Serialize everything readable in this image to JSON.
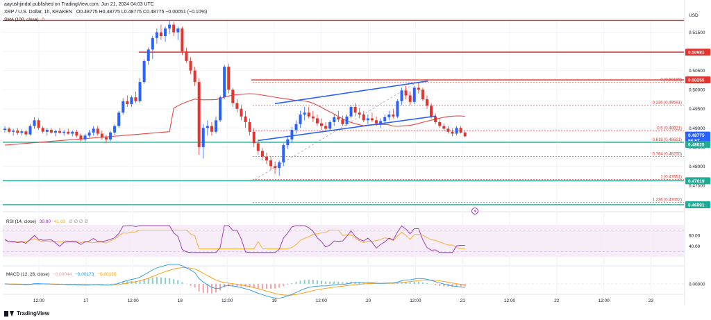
{
  "header": {
    "author": "aayushjindal published on TradingView.com, Jun 21, 2024 04:03 UTC",
    "symbol_line": "XRP / U.S. Dollar, 1h, KRAKEN",
    "ohlc": "O0.48775 H0.48775 L0.48775 C0.48775 −0.00051 (−0.10%)",
    "sma_label": "SMA (100, close)",
    "sma_value": "0"
  },
  "footer": {
    "brand": "TradingView"
  },
  "price_axis": {
    "currency": "USD",
    "ticks": [
      "0.51500",
      "0.51000",
      "0.50500",
      "0.50000",
      "0.49500",
      "0.49000",
      "0.48500",
      "0.48000",
      "0.47500",
      "0.47000"
    ]
  },
  "price_badges": [
    {
      "label": "0.50981",
      "color": "#e3342f"
    },
    {
      "label": "0.50255",
      "color": "#e3342f"
    },
    {
      "label": "0.48775",
      "color": "#2962ff"
    },
    {
      "label": "56:57",
      "color": "#2962ff"
    },
    {
      "label": "0.48625",
      "color": "#22ab94"
    },
    {
      "label": "0.47619",
      "color": "#22ab94"
    },
    {
      "label": "0.46991",
      "color": "#22ab94"
    }
  ],
  "fib_labels": [
    {
      "ratio": "0",
      "price": "0.50190",
      "text": "0 (0.50190)"
    },
    {
      "ratio": "0.236",
      "price": "0.49591",
      "text": "0.236 (0.49591)"
    },
    {
      "ratio": "0.5",
      "price": "0.48921",
      "text": "0.5 (0.48921)"
    },
    {
      "ratio": "0.618",
      "price": "0.48621",
      "text": "0.618 (0.48621)"
    },
    {
      "ratio": "0.764",
      "price": "0.48250",
      "text": "0.764 (0.48250)"
    },
    {
      "ratio": "1",
      "price": "0.47651",
      "text": "1 (0.47651)"
    },
    {
      "ratio": "1.236",
      "price": "0.47052",
      "text": "1.236 (0.47052)"
    }
  ],
  "rsi": {
    "label": "RSI (14, close)",
    "value": "39.80",
    "value2": "41.63",
    "ticks": [
      "60.00",
      "40.00"
    ]
  },
  "macd": {
    "label": "MACD (12, 26, close)",
    "values": [
      "−0.00044",
      "−0.00173",
      "−0.00130"
    ],
    "ticks": [
      "0.00000"
    ]
  },
  "time_axis": [
    "12:00",
    "17",
    "12:00",
    "18",
    "12:00",
    "19",
    "12:00",
    "20",
    "12:00",
    "21",
    "12:00",
    "22",
    "12:00",
    "23"
  ],
  "colors": {
    "up": "#2962ff",
    "down": "#e3342f",
    "sma": "#e3342f",
    "trend": "#2962ff",
    "support": "#22ab94",
    "resistance": "#e3342f",
    "rsi": "#9c27b0",
    "macd": "#2196f3",
    "signal": "#ff9800"
  },
  "chart_data": {
    "type": "candlestick",
    "symbol": "XRP / U.S. Dollar",
    "interval": "1h",
    "ylim": [
      0.469,
      0.518
    ],
    "horizontal_lines": [
      {
        "price": 0.5181,
        "color": "red"
      },
      {
        "price": 0.50981,
        "color": "red"
      },
      {
        "price": 0.50255,
        "color": "red"
      },
      {
        "price": 0.48625,
        "color": "green"
      },
      {
        "price": 0.47619,
        "color": "green"
      },
      {
        "price": 0.46991,
        "color": "green"
      }
    ],
    "fibonacci": [
      {
        "level": 0,
        "price": 0.5019
      },
      {
        "level": 0.236,
        "price": 0.49591
      },
      {
        "level": 0.5,
        "price": 0.48921
      },
      {
        "level": 0.618,
        "price": 0.48621
      },
      {
        "level": 0.764,
        "price": 0.4825
      },
      {
        "level": 1,
        "price": 0.47651
      },
      {
        "level": 1.236,
        "price": 0.47052
      }
    ],
    "candles": [
      [
        0.4895,
        0.4905,
        0.4888,
        0.4898
      ],
      [
        0.4898,
        0.4902,
        0.4885,
        0.489
      ],
      [
        0.489,
        0.4898,
        0.488,
        0.4893
      ],
      [
        0.4893,
        0.49,
        0.4882,
        0.4887
      ],
      [
        0.4887,
        0.4897,
        0.488,
        0.4891
      ],
      [
        0.4891,
        0.4895,
        0.4878,
        0.4883
      ],
      [
        0.4883,
        0.491,
        0.488,
        0.4905
      ],
      [
        0.4905,
        0.4928,
        0.4898,
        0.492
      ],
      [
        0.492,
        0.4925,
        0.4895,
        0.49
      ],
      [
        0.49,
        0.4905,
        0.4885,
        0.489
      ],
      [
        0.489,
        0.49,
        0.488,
        0.4895
      ],
      [
        0.4895,
        0.49,
        0.4885,
        0.4888
      ],
      [
        0.4888,
        0.4895,
        0.4878,
        0.4892
      ],
      [
        0.4892,
        0.49,
        0.4885,
        0.4887
      ],
      [
        0.4887,
        0.4895,
        0.488,
        0.489
      ],
      [
        0.489,
        0.4898,
        0.4882,
        0.4885
      ],
      [
        0.4885,
        0.4893,
        0.4878,
        0.489
      ],
      [
        0.489,
        0.4895,
        0.4875,
        0.488
      ],
      [
        0.488,
        0.4885,
        0.4865,
        0.487
      ],
      [
        0.487,
        0.4885,
        0.4865,
        0.488
      ],
      [
        0.488,
        0.4895,
        0.4875,
        0.4888
      ],
      [
        0.4888,
        0.4905,
        0.488,
        0.4898
      ],
      [
        0.4898,
        0.4905,
        0.488,
        0.4885
      ],
      [
        0.4885,
        0.4893,
        0.487,
        0.4875
      ],
      [
        0.4875,
        0.4882,
        0.486,
        0.487
      ],
      [
        0.487,
        0.4892,
        0.4865,
        0.4888
      ],
      [
        0.4888,
        0.491,
        0.4882,
        0.4905
      ],
      [
        0.4905,
        0.4945,
        0.49,
        0.494
      ],
      [
        0.494,
        0.4978,
        0.4935,
        0.497
      ],
      [
        0.497,
        0.4985,
        0.4955,
        0.4962
      ],
      [
        0.4962,
        0.4985,
        0.4955,
        0.498
      ],
      [
        0.498,
        0.4995,
        0.4965,
        0.497
      ],
      [
        0.497,
        0.503,
        0.4965,
        0.502
      ],
      [
        0.502,
        0.508,
        0.5015,
        0.5075
      ],
      [
        0.5075,
        0.511,
        0.5065,
        0.5105
      ],
      [
        0.5105,
        0.514,
        0.508,
        0.5135
      ],
      [
        0.5135,
        0.516,
        0.512,
        0.515
      ],
      [
        0.515,
        0.517,
        0.513,
        0.514
      ],
      [
        0.514,
        0.5165,
        0.5125,
        0.516
      ],
      [
        0.516,
        0.518,
        0.5145,
        0.517
      ],
      [
        0.517,
        0.5178,
        0.514,
        0.515
      ],
      [
        0.515,
        0.5165,
        0.513,
        0.516
      ],
      [
        0.516,
        0.5165,
        0.509,
        0.51
      ],
      [
        0.51,
        0.511,
        0.507,
        0.5075
      ],
      [
        0.5075,
        0.5085,
        0.504,
        0.505
      ],
      [
        0.505,
        0.506,
        0.501,
        0.502
      ],
      [
        0.502,
        0.503,
        0.483,
        0.485
      ],
      [
        0.485,
        0.491,
        0.482,
        0.49
      ],
      [
        0.49,
        0.492,
        0.488,
        0.4905
      ],
      [
        0.4905,
        0.4915,
        0.488,
        0.489
      ],
      [
        0.489,
        0.493,
        0.4885,
        0.492
      ],
      [
        0.492,
        0.4985,
        0.4915,
        0.498
      ],
      [
        0.498,
        0.5065,
        0.4975,
        0.506
      ],
      [
        0.506,
        0.5068,
        0.499,
        0.5
      ],
      [
        0.5,
        0.5005,
        0.4955,
        0.4965
      ],
      [
        0.4965,
        0.4975,
        0.494,
        0.495
      ],
      [
        0.495,
        0.496,
        0.492,
        0.493
      ],
      [
        0.493,
        0.4945,
        0.49,
        0.4915
      ],
      [
        0.4915,
        0.4925,
        0.488,
        0.489
      ],
      [
        0.489,
        0.49,
        0.485,
        0.486
      ],
      [
        0.486,
        0.487,
        0.483,
        0.484
      ],
      [
        0.484,
        0.4848,
        0.4815,
        0.4825
      ],
      [
        0.4825,
        0.4835,
        0.4805,
        0.4815
      ],
      [
        0.4815,
        0.4825,
        0.479,
        0.48
      ],
      [
        0.48,
        0.4812,
        0.478,
        0.4795
      ],
      [
        0.4795,
        0.4815,
        0.4775,
        0.481
      ],
      [
        0.481,
        0.486,
        0.48,
        0.4855
      ],
      [
        0.4855,
        0.488,
        0.4845,
        0.487
      ],
      [
        0.487,
        0.4902,
        0.4862,
        0.4895
      ],
      [
        0.4895,
        0.492,
        0.4885,
        0.491
      ],
      [
        0.491,
        0.4945,
        0.49,
        0.4935
      ],
      [
        0.4935,
        0.4955,
        0.492,
        0.494
      ],
      [
        0.494,
        0.4955,
        0.4925,
        0.493
      ],
      [
        0.493,
        0.4945,
        0.4915,
        0.4925
      ],
      [
        0.4925,
        0.4935,
        0.4905,
        0.4912
      ],
      [
        0.4912,
        0.4925,
        0.4895,
        0.4905
      ],
      [
        0.4905,
        0.4915,
        0.489,
        0.4898
      ],
      [
        0.4898,
        0.492,
        0.4892,
        0.4915
      ],
      [
        0.4915,
        0.4935,
        0.4905,
        0.4928
      ],
      [
        0.4928,
        0.4945,
        0.4915,
        0.4922
      ],
      [
        0.4922,
        0.4932,
        0.4905,
        0.491
      ],
      [
        0.491,
        0.4935,
        0.4905,
        0.493
      ],
      [
        0.493,
        0.496,
        0.4925,
        0.4955
      ],
      [
        0.4955,
        0.4965,
        0.493,
        0.494
      ],
      [
        0.494,
        0.4952,
        0.4925,
        0.4935
      ],
      [
        0.4935,
        0.4945,
        0.4915,
        0.492
      ],
      [
        0.492,
        0.4935,
        0.491,
        0.4925
      ],
      [
        0.4925,
        0.494,
        0.4915,
        0.492
      ],
      [
        0.492,
        0.493,
        0.4905,
        0.4912
      ],
      [
        0.4912,
        0.4925,
        0.49,
        0.4918
      ],
      [
        0.4918,
        0.4935,
        0.491,
        0.4928
      ],
      [
        0.4928,
        0.4945,
        0.492,
        0.4935
      ],
      [
        0.4935,
        0.495,
        0.4925,
        0.493
      ],
      [
        0.493,
        0.4975,
        0.4925,
        0.497
      ],
      [
        0.497,
        0.5005,
        0.496,
        0.4998
      ],
      [
        0.4998,
        0.501,
        0.4975,
        0.4985
      ],
      [
        0.4985,
        0.4995,
        0.496,
        0.4968
      ],
      [
        0.4968,
        0.501,
        0.4962,
        0.5005
      ],
      [
        0.5005,
        0.502,
        0.499,
        0.5
      ],
      [
        0.5,
        0.5005,
        0.497,
        0.4975
      ],
      [
        0.4975,
        0.4985,
        0.495,
        0.4958
      ],
      [
        0.4958,
        0.4965,
        0.4925,
        0.493
      ],
      [
        0.493,
        0.4938,
        0.491,
        0.4915
      ],
      [
        0.4915,
        0.4922,
        0.49,
        0.4905
      ],
      [
        0.4905,
        0.4912,
        0.4892,
        0.4898
      ],
      [
        0.4898,
        0.4905,
        0.4885,
        0.489
      ],
      [
        0.489,
        0.4898,
        0.4878,
        0.4885
      ],
      [
        0.4885,
        0.4905,
        0.488,
        0.49
      ],
      [
        0.49,
        0.4905,
        0.4885,
        0.4888
      ],
      [
        0.4888,
        0.4892,
        0.4876,
        0.4878
      ]
    ]
  }
}
